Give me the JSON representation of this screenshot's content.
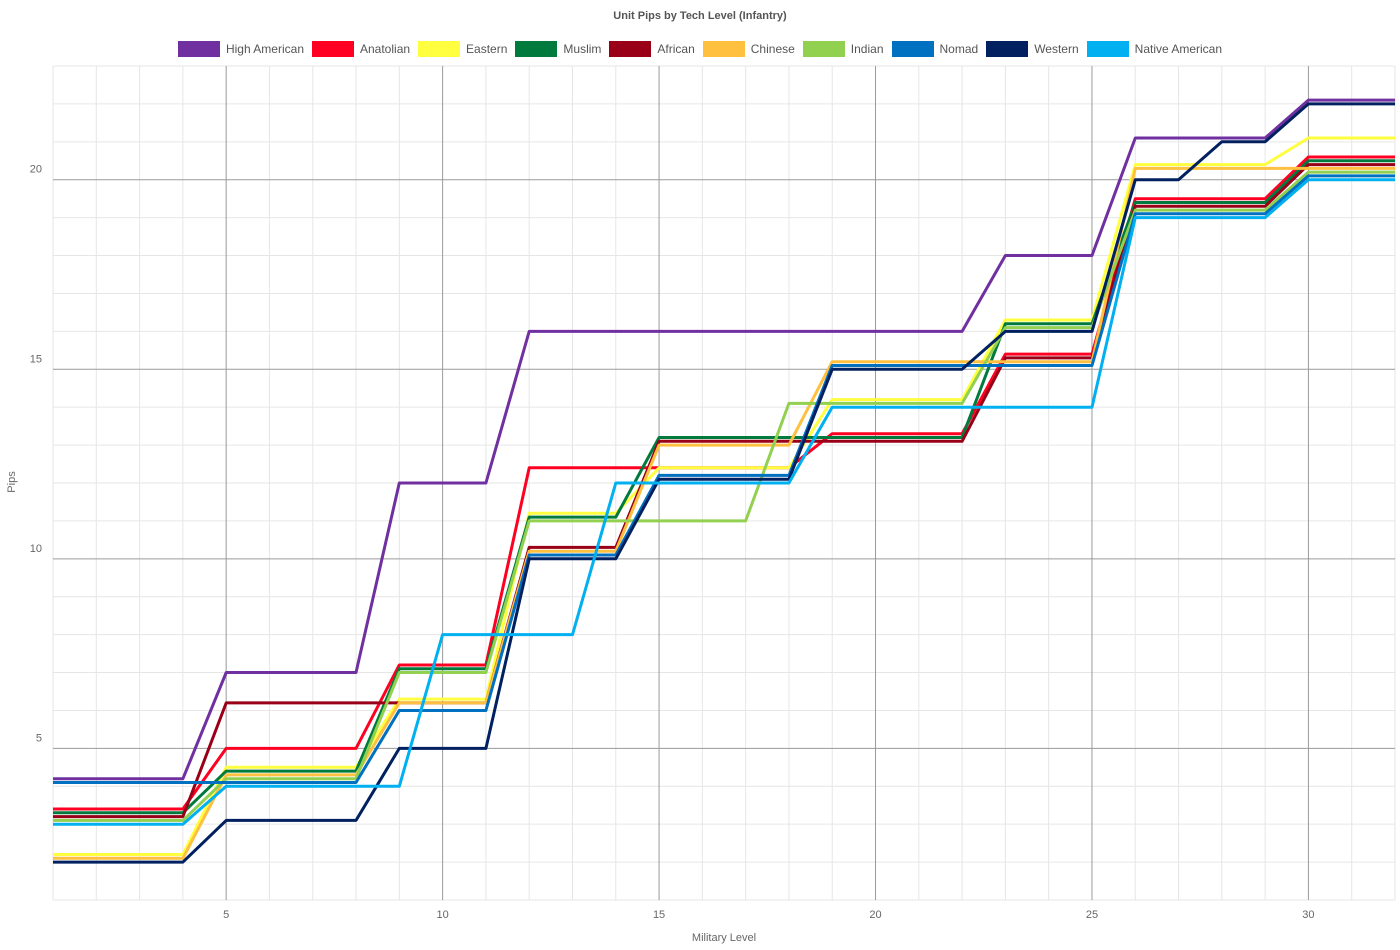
{
  "chart_data": {
    "type": "line",
    "title": "Unit Pips by Tech Level (Infantry)",
    "xlabel": "Military Level",
    "ylabel": "Pips",
    "xlim": [
      1,
      32
    ],
    "ylim": [
      1,
      23
    ],
    "xticks": [
      5,
      10,
      15,
      20,
      25,
      30
    ],
    "yticks": [
      5,
      10,
      15,
      20
    ],
    "grid": true,
    "legend_position": "top",
    "x": [
      1,
      2,
      3,
      4,
      5,
      6,
      7,
      8,
      9,
      10,
      11,
      12,
      13,
      14,
      15,
      16,
      17,
      18,
      19,
      20,
      21,
      22,
      23,
      24,
      25,
      26,
      27,
      28,
      29,
      30,
      31,
      32
    ],
    "series": [
      {
        "name": "High American",
        "color": "#7030a0",
        "values": [
          4.2,
          4.2,
          4.2,
          4.2,
          7,
          7,
          7,
          7,
          12,
          12,
          12,
          16,
          16,
          16,
          16,
          16,
          16,
          16,
          16,
          16,
          16,
          16,
          18,
          18,
          18,
          21.1,
          21.1,
          21.1,
          21.1,
          22.1,
          22.1,
          22.1
        ]
      },
      {
        "name": "Anatolian",
        "color": "#ff0022",
        "values": [
          3.4,
          3.4,
          3.4,
          3.4,
          5,
          5,
          5,
          5,
          7.2,
          7.2,
          7.2,
          12.4,
          12.4,
          12.4,
          12.4,
          12.4,
          12.4,
          12.4,
          13.3,
          13.3,
          13.3,
          13.3,
          15.4,
          15.4,
          15.4,
          19.5,
          19.5,
          19.5,
          19.5,
          20.6,
          20.6,
          20.6
        ]
      },
      {
        "name": "Eastern",
        "color": "#ffff40",
        "values": [
          2.2,
          2.2,
          2.2,
          2.2,
          4.5,
          4.5,
          4.5,
          4.5,
          6.3,
          6.3,
          6.3,
          11.2,
          11.2,
          11.2,
          12.4,
          12.4,
          12.4,
          12.4,
          14.2,
          14.2,
          14.2,
          14.2,
          16.3,
          16.3,
          16.3,
          20.4,
          20.4,
          20.4,
          20.4,
          21.1,
          21.1,
          21.1
        ]
      },
      {
        "name": "Muslim",
        "color": "#007a3d",
        "values": [
          3.3,
          3.3,
          3.3,
          3.3,
          4.4,
          4.4,
          4.4,
          4.4,
          7.1,
          7.1,
          7.1,
          11.1,
          11.1,
          11.1,
          13.2,
          13.2,
          13.2,
          13.2,
          13.2,
          13.2,
          13.2,
          13.2,
          16.2,
          16.2,
          16.2,
          19.4,
          19.4,
          19.4,
          19.4,
          20.5,
          20.5,
          20.5
        ]
      },
      {
        "name": "African",
        "color": "#990018",
        "values": [
          3.2,
          3.2,
          3.2,
          3.2,
          6.2,
          6.2,
          6.2,
          6.2,
          6.2,
          6.2,
          6.2,
          10.3,
          10.3,
          10.3,
          13.1,
          13.1,
          13.1,
          13.1,
          13.1,
          13.1,
          13.1,
          13.1,
          15.3,
          15.3,
          15.3,
          19.3,
          19.3,
          19.3,
          19.3,
          20.4,
          20.4,
          20.4
        ]
      },
      {
        "name": "Chinese",
        "color": "#ffc040",
        "values": [
          2.1,
          2.1,
          2.1,
          2.1,
          4.3,
          4.3,
          4.3,
          4.3,
          6.2,
          6.2,
          6.2,
          10.2,
          10.2,
          10.2,
          13,
          13,
          13,
          13,
          15.2,
          15.2,
          15.2,
          15.2,
          15.2,
          15.2,
          15.2,
          20.3,
          20.3,
          20.3,
          20.3,
          20.3,
          20.3,
          20.3
        ]
      },
      {
        "name": "Indian",
        "color": "#92d050",
        "values": [
          3.1,
          3.1,
          3.1,
          3.1,
          4.2,
          4.2,
          4.2,
          4.2,
          7,
          7,
          7,
          11,
          11,
          11,
          11,
          11,
          11,
          14.1,
          14.1,
          14.1,
          14.1,
          14.1,
          16.1,
          16.1,
          16.1,
          19.2,
          19.2,
          19.2,
          19.2,
          20.2,
          20.2,
          20.2
        ]
      },
      {
        "name": "Nomad",
        "color": "#0070c0",
        "values": [
          4.1,
          4.1,
          4.1,
          4.1,
          4.1,
          4.1,
          4.1,
          4.1,
          6,
          6,
          6,
          10.1,
          10.1,
          10.1,
          12.2,
          12.2,
          12.2,
          12.2,
          15.1,
          15.1,
          15.1,
          15.1,
          15.1,
          15.1,
          15.1,
          19.1,
          19.1,
          19.1,
          19.1,
          20.1,
          20.1,
          20.1
        ]
      },
      {
        "name": "Western",
        "color": "#002060",
        "values": [
          2,
          2,
          2,
          2,
          3.1,
          3.1,
          3.1,
          3.1,
          5,
          5,
          5,
          10,
          10,
          10,
          12.1,
          12.1,
          12.1,
          12.1,
          15,
          15,
          15,
          15,
          16,
          16,
          16,
          20,
          20,
          21,
          21,
          22,
          22,
          22
        ]
      },
      {
        "name": "Native American",
        "color": "#00b0f0",
        "values": [
          3,
          3,
          3,
          3,
          4,
          4,
          4,
          4,
          4,
          8,
          8,
          8,
          8,
          12,
          12,
          12,
          12,
          12,
          14,
          14,
          14,
          14,
          14,
          14,
          14,
          19,
          19,
          19,
          19,
          20,
          20,
          20
        ]
      }
    ]
  }
}
